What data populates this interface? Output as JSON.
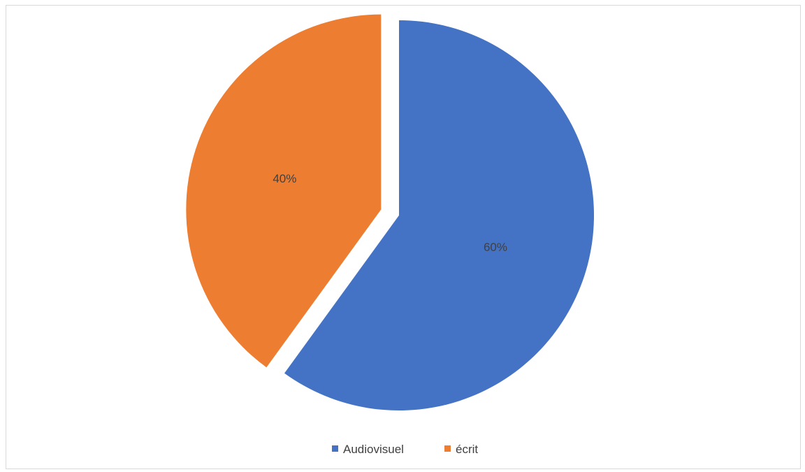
{
  "chart_data": {
    "type": "pie",
    "categories": [
      "Audiovisuel",
      "écrit"
    ],
    "values": [
      60,
      40
    ],
    "data_labels": [
      "60%",
      "40%"
    ],
    "colors": [
      "#4472C4",
      "#ED7D31"
    ],
    "exploded": [
      false,
      true
    ],
    "start_angle_deg": 0,
    "direction": "clockwise",
    "legend_position": "bottom",
    "title": ""
  }
}
